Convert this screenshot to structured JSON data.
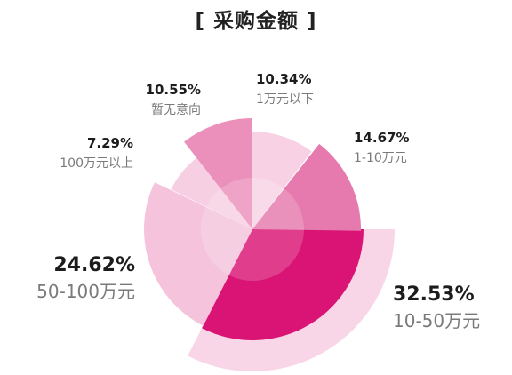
{
  "title": "[ 采购金额 ]",
  "chart_data": {
    "type": "pie",
    "title": "[ 采购金额 ]",
    "slices": [
      {
        "label": "10-50万元",
        "percent": "32.53%",
        "value": 32.53,
        "color": "#d91475"
      },
      {
        "label": "50-100万元",
        "percent": "24.62%",
        "value": 24.62,
        "color": "#f5c4dc"
      },
      {
        "label": "100万元以上",
        "percent": "7.29%",
        "value": 7.29,
        "color": "#f7cfe2"
      },
      {
        "label": "暂无意向",
        "percent": "10.55%",
        "value": 10.55,
        "color": "#eb8fbb"
      },
      {
        "label": "1万元以下",
        "percent": "10.34%",
        "value": 10.34,
        "color": "#f8d2e4"
      },
      {
        "label": "1-10万元",
        "percent": "14.67%",
        "value": 14.67,
        "color": "#e679ad"
      }
    ],
    "legend": "none",
    "grid": false
  }
}
